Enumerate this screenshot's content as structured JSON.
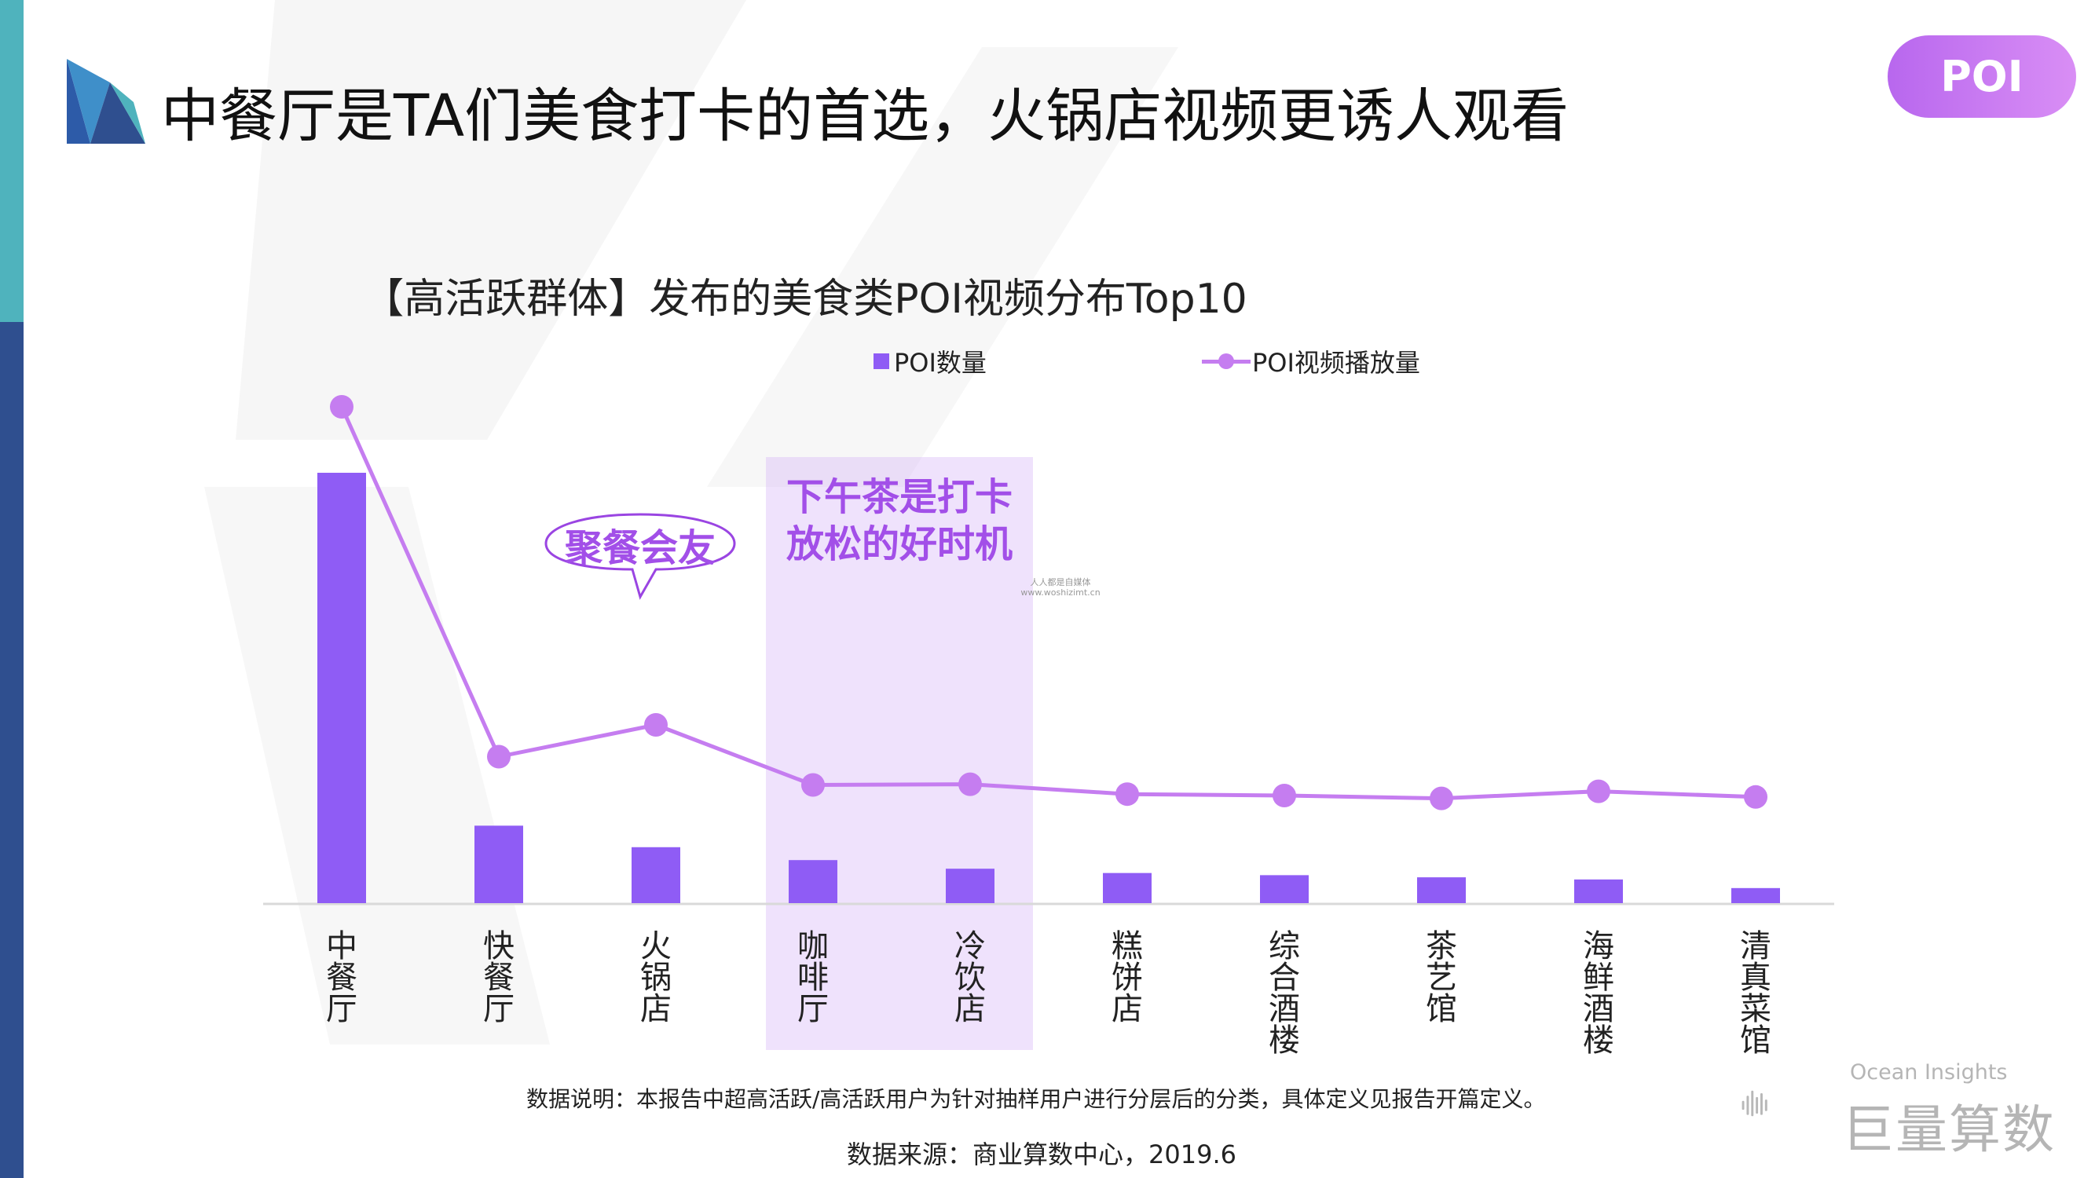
{
  "header": {
    "title": "中餐厅是TA们美食打卡的首选，火锅店视频更诱人观看",
    "tag": "POI",
    "logo_icon": "pinwheel-logo-icon"
  },
  "colors": {
    "bar": "#8f5cf5",
    "line": "#c57df0",
    "highlight": "#a24fe8",
    "left_bar_top": "#4fb3bd",
    "left_bar_bottom": "#2f4f8f"
  },
  "chart_data": {
    "type": "bar",
    "title": "【高活跃群体】发布的美食类POI视频分布Top10",
    "legend_position": "top",
    "grid": false,
    "categories": [
      "中餐厅",
      "快餐厅",
      "火锅店",
      "咖啡厅",
      "冷饮店",
      "糕饼店",
      "综合酒楼",
      "茶艺馆",
      "海鲜酒楼",
      "清真菜馆"
    ],
    "series": [
      {
        "name": "POI数量",
        "type": "bar",
        "values": [
          100,
          18,
          13,
          10,
          8,
          7,
          6.5,
          6,
          5.5,
          3.5
        ]
      },
      {
        "name": "POI视频播放量",
        "type": "line",
        "values": [
          100,
          50.5,
          55,
          46.5,
          46.6,
          45.2,
          45,
          44.6,
          45.6,
          44.8
        ]
      }
    ],
    "ylim": [
      0,
      100
    ],
    "annotations": {
      "callout": "聚餐会友",
      "highlight_lines": [
        "下午茶是打卡",
        "放松的好时机"
      ],
      "highlight_categories": [
        "咖啡厅",
        "冷饮店"
      ]
    }
  },
  "watermark": {
    "line1": "人人都是自媒体",
    "line2": "www.woshizimt.cn"
  },
  "footer": {
    "description": "数据说明：本报告中超高活跃/高活跃用户为针对抽样用户进行分层后的分类，具体定义见报告开篇定义。",
    "source": "数据来源：商业算数中心，2019.6"
  },
  "brand": {
    "en": "Ocean Insights",
    "cn": "巨量算数",
    "icon": "sound-bars-icon"
  }
}
